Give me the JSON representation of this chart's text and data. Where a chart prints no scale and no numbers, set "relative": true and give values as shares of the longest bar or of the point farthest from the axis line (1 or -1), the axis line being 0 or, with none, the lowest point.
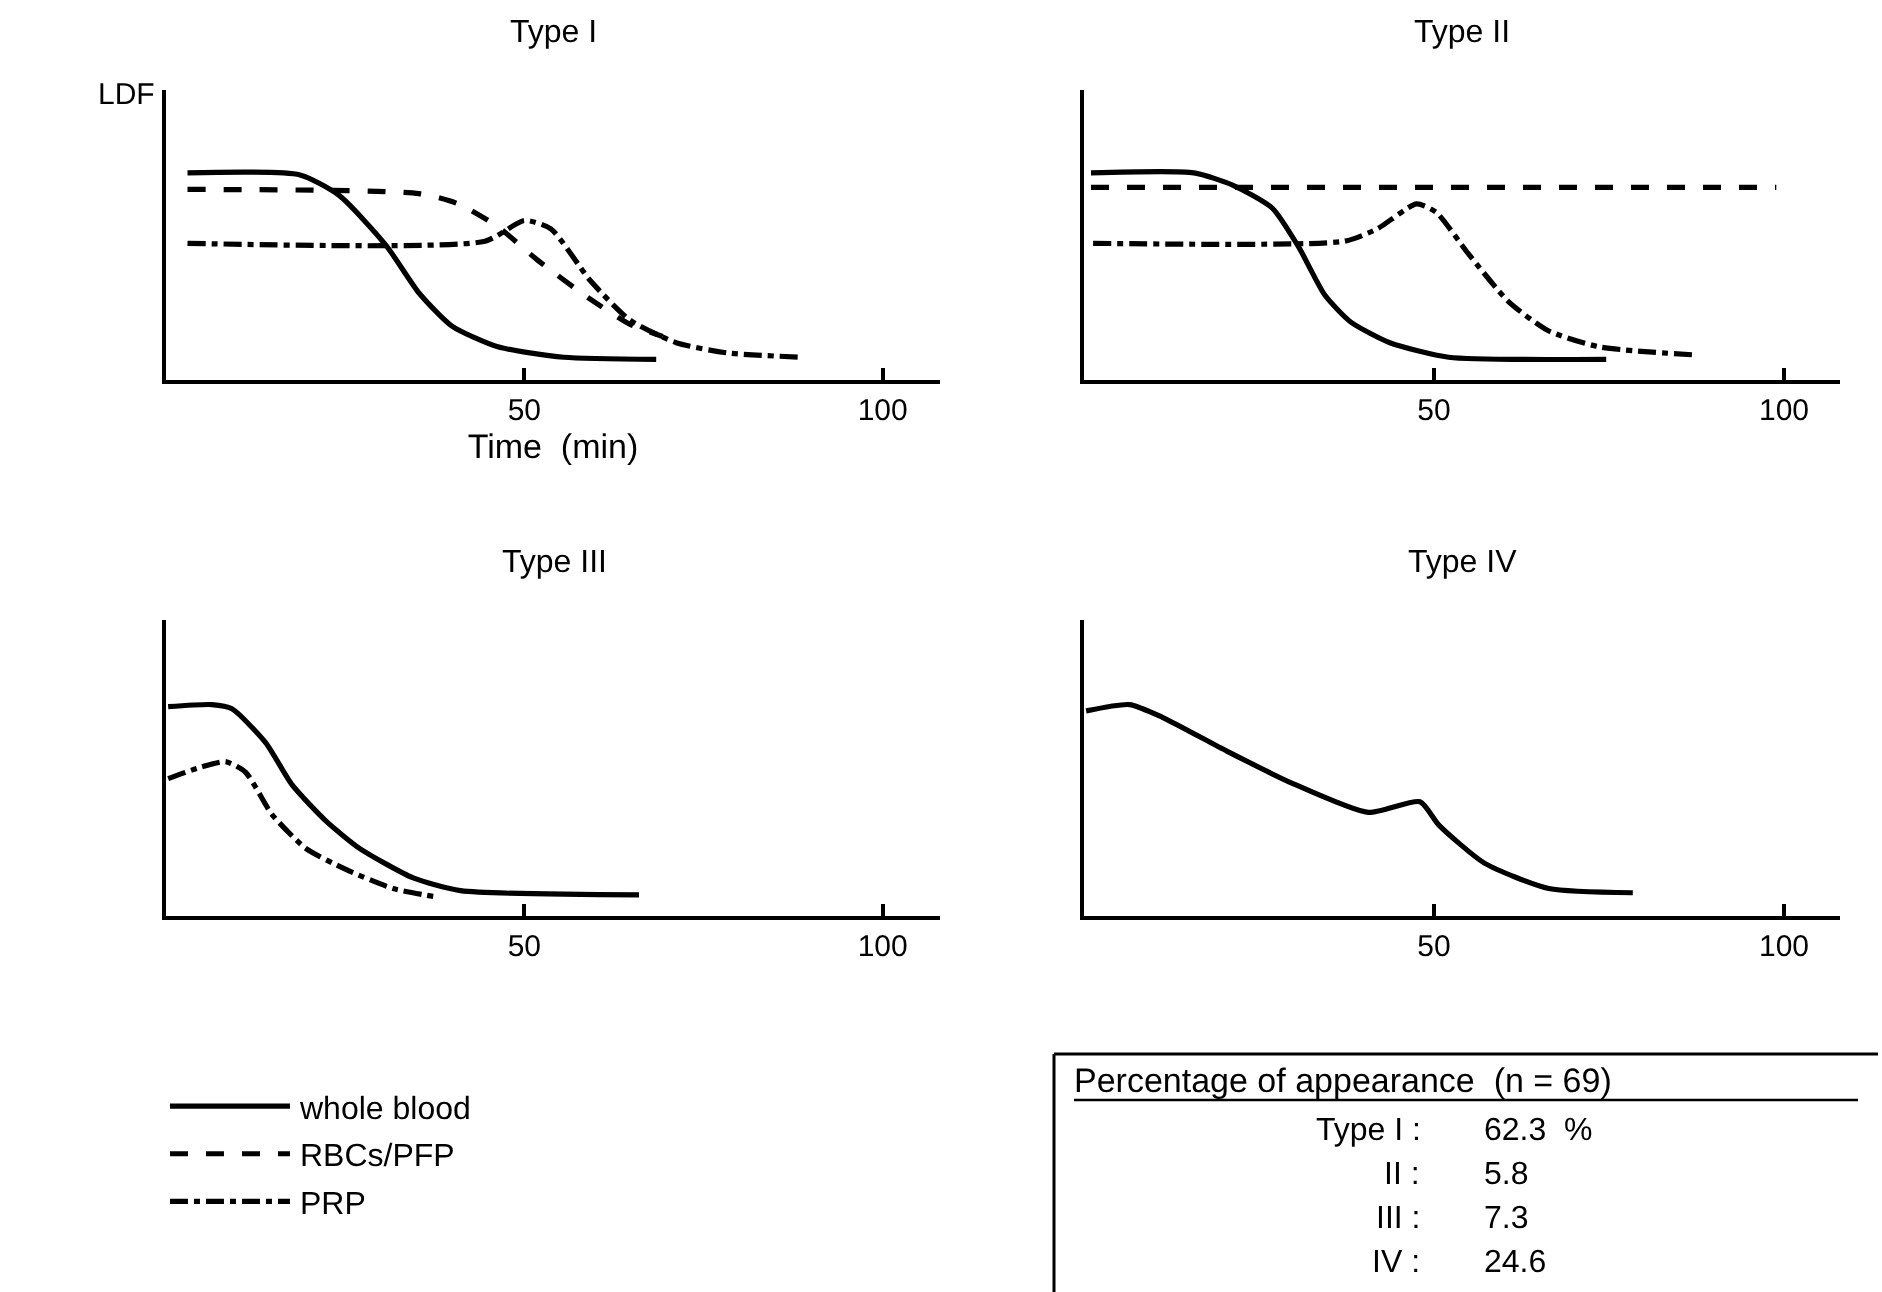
{
  "chart_data": [
    {
      "type": "line",
      "title": "Type I",
      "xlabel": "Time  (min)",
      "ylabel": "LDF",
      "relative": true,
      "xlim": [
        0,
        108
      ],
      "xticks": [
        50,
        100
      ],
      "legend": "bottom left",
      "series": [
        {
          "name": "whole blood",
          "color": "#000000",
          "line_style": "solid",
          "x": [
            3,
            18.7,
            24.2,
            30.7,
            35.3,
            39.9,
            46.3,
            55.5,
            68.4
          ],
          "values": [
            1.0,
            0.99,
            0.89,
            0.65,
            0.42,
            0.26,
            0.16,
            0.11,
            0.1
          ]
        },
        {
          "name": "RBCs/PFP",
          "color": "#000000",
          "line_style": "dashed",
          "x": [
            3,
            35.3,
            40.8,
            46.3,
            51.8,
            59.2,
            64.7,
            69.3
          ],
          "values": [
            0.92,
            0.9,
            0.85,
            0.74,
            0.58,
            0.39,
            0.27,
            0.21
          ]
        },
        {
          "name": "PRP",
          "color": "#000000",
          "line_style": "dashdot",
          "x": [
            3,
            44.5,
            50,
            53.7,
            59.2,
            64.7,
            71.2,
            78.5,
            88.7
          ],
          "values": [
            0.66,
            0.67,
            0.77,
            0.73,
            0.48,
            0.29,
            0.18,
            0.13,
            0.11
          ]
        }
      ]
    },
    {
      "type": "line",
      "title": "Type II",
      "relative": true,
      "xlim": [
        0,
        108
      ],
      "xticks": [
        50,
        100
      ],
      "series": [
        {
          "color": "#000000",
          "line_style": "solid",
          "x": [
            1,
            15.7,
            21.3,
            26.9,
            30.7,
            34.4,
            38.1,
            43.7,
            52.1,
            74.6
          ],
          "values": [
            1.0,
            1.0,
            0.94,
            0.83,
            0.64,
            0.41,
            0.28,
            0.18,
            0.11,
            0.1
          ]
        },
        {
          "color": "#000000",
          "line_style": "dashed",
          "x": [
            1,
            98.9
          ],
          "values": [
            0.93,
            0.93
          ]
        },
        {
          "color": "#000000",
          "line_style": "dashdot",
          "x": [
            1.3,
            37.2,
            41.9,
            47.5,
            50.3,
            54.9,
            60.6,
            66.2,
            73.6,
            87.7
          ],
          "values": [
            0.66,
            0.67,
            0.73,
            0.85,
            0.81,
            0.61,
            0.38,
            0.24,
            0.16,
            0.12
          ]
        }
      ]
    },
    {
      "type": "line",
      "title": "Type III",
      "relative": true,
      "xlim": [
        0,
        108
      ],
      "xticks": [
        50,
        100
      ],
      "series": [
        {
          "color": "#000000",
          "line_style": "solid",
          "x": [
            0.3,
            6.4,
            9.2,
            13.9,
            17.6,
            22.3,
            27.0,
            34.5,
            41.1,
            66.0
          ],
          "values": [
            0.99,
            1.0,
            0.98,
            0.82,
            0.62,
            0.45,
            0.32,
            0.18,
            0.12,
            0.1
          ]
        },
        {
          "color": "#000000",
          "line_style": "dashdot",
          "x": [
            0.3,
            4.5,
            8.3,
            11.1,
            14.8,
            19.5,
            25.1,
            31.7,
            37.8
          ],
          "values": [
            0.65,
            0.7,
            0.73,
            0.68,
            0.48,
            0.32,
            0.22,
            0.13,
            0.09
          ]
        }
      ]
    },
    {
      "type": "line",
      "title": "Type IV",
      "relative": true,
      "xlim": [
        0,
        108
      ],
      "xticks": [
        50,
        100
      ],
      "series": [
        {
          "color": "#000000",
          "line_style": "solid",
          "x": [
            0.3,
            6.5,
            11.2,
            20.4,
            29.6,
            40.6,
            48.0,
            50.7,
            57.2,
            66.4,
            78.4
          ],
          "values": [
            0.97,
            1.0,
            0.94,
            0.78,
            0.63,
            0.49,
            0.54,
            0.43,
            0.25,
            0.13,
            0.11
          ]
        }
      ]
    },
    {
      "type": "other",
      "title": "Percentage of appearance  (n = 69)",
      "annotations": [
        "Type I :",
        "62.3  %",
        "II :",
        "5.8",
        "III :",
        "7.3",
        "IV :",
        "24.6"
      ]
    }
  ]
}
